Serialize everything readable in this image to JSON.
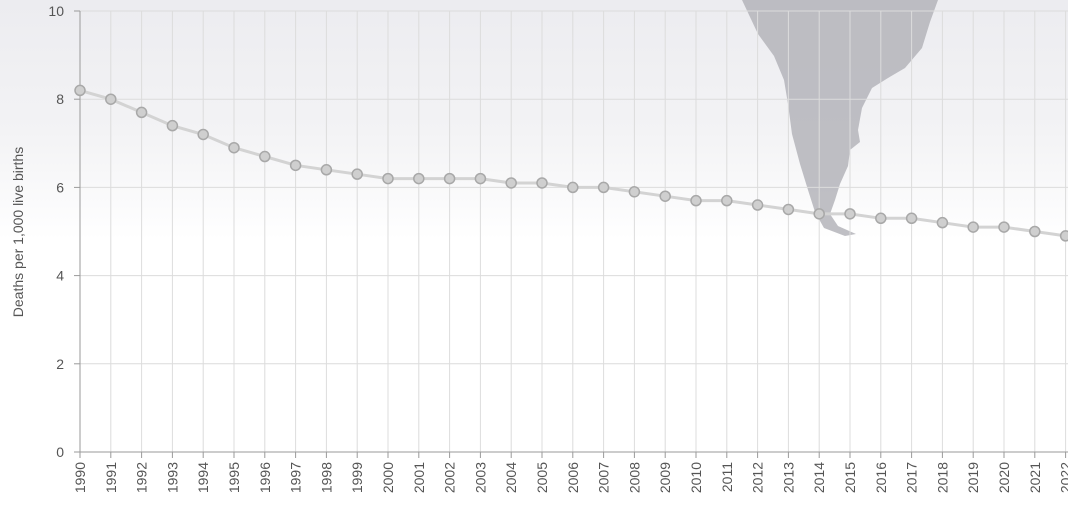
{
  "chart_data": {
    "type": "line",
    "ylabel": "Deaths per 1,000 live births",
    "xlabel": "",
    "ylim": [
      0,
      10
    ],
    "y_ticks": [
      0,
      2,
      4,
      6,
      8,
      10
    ],
    "grid": true,
    "x": [
      "1990",
      "1991",
      "1992",
      "1993",
      "1994",
      "1995",
      "1996",
      "1997",
      "1998",
      "1999",
      "2000",
      "2001",
      "2002",
      "2003",
      "2004",
      "2005",
      "2006",
      "2007",
      "2008",
      "2009",
      "2010",
      "2011",
      "2012",
      "2013",
      "2014",
      "2015",
      "2016",
      "2017",
      "2018",
      "2019",
      "2020",
      "2021",
      "2022"
    ],
    "series": [
      {
        "values": [
          8.2,
          8.0,
          7.7,
          7.4,
          7.2,
          6.9,
          6.7,
          6.5,
          6.4,
          6.3,
          6.2,
          6.2,
          6.2,
          6.2,
          6.1,
          6.1,
          6.0,
          6.0,
          5.9,
          5.8,
          5.7,
          5.7,
          5.6,
          5.5,
          5.4,
          5.4,
          5.3,
          5.3,
          5.2,
          5.1,
          5.1,
          5.0,
          4.9
        ]
      }
    ],
    "colors": {
      "line": "#d3d3d3",
      "marker": "#cfcfcf",
      "grid": "#dcdcdc",
      "text": "#555555"
    },
    "background": "map-silhouette-south-america"
  }
}
